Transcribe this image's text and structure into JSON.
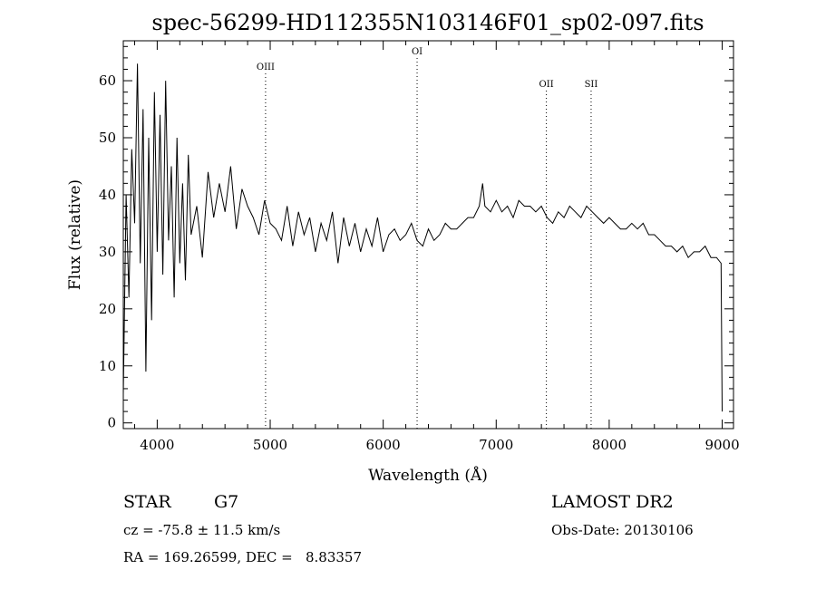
{
  "chart_data": {
    "type": "line",
    "title": "spec-56299-HD112355N103146F01_sp02-097.fits",
    "xlabel": "Wavelength (Å)",
    "ylabel": "Flux (relative)",
    "xlim": [
      3700,
      9100
    ],
    "ylim": [
      -1,
      67
    ],
    "xticks": [
      4000,
      5000,
      6000,
      7000,
      8000,
      9000
    ],
    "yticks": [
      0,
      10,
      20,
      30,
      40,
      50,
      60
    ],
    "grid": false,
    "series": [
      {
        "x": [
          3700,
          3725,
          3750,
          3775,
          3800,
          3825,
          3850,
          3875,
          3900,
          3925,
          3950,
          3975,
          4000,
          4025,
          4050,
          4075,
          4100,
          4125,
          4150,
          4175,
          4200,
          4225,
          4250,
          4275,
          4300,
          4350,
          4400,
          4450,
          4500,
          4550,
          4600,
          4650,
          4700,
          4750,
          4800,
          4850,
          4900,
          4950,
          5000,
          5050,
          5100,
          5150,
          5200,
          5250,
          5300,
          5350,
          5400,
          5450,
          5500,
          5550,
          5600,
          5650,
          5700,
          5750,
          5800,
          5850,
          5900,
          5950,
          6000,
          6050,
          6100,
          6150,
          6200,
          6250,
          6300,
          6350,
          6400,
          6450,
          6500,
          6550,
          6600,
          6650,
          6700,
          6750,
          6800,
          6850,
          6880,
          6900,
          6950,
          7000,
          7050,
          7100,
          7150,
          7200,
          7250,
          7300,
          7350,
          7400,
          7450,
          7500,
          7550,
          7600,
          7650,
          7700,
          7750,
          7800,
          7850,
          7900,
          7950,
          8000,
          8050,
          8100,
          8150,
          8200,
          8250,
          8300,
          8350,
          8400,
          8450,
          8500,
          8550,
          8600,
          8650,
          8700,
          8750,
          8800,
          8850,
          8900,
          8950,
          8990,
          9000
        ],
        "y": [
          5,
          40,
          22,
          48,
          35,
          63,
          28,
          55,
          9,
          50,
          18,
          58,
          30,
          54,
          26,
          60,
          32,
          45,
          22,
          50,
          28,
          42,
          25,
          47,
          33,
          38,
          29,
          44,
          36,
          42,
          37,
          45,
          34,
          41,
          38,
          36,
          33,
          39,
          35,
          34,
          32,
          38,
          31,
          37,
          33,
          36,
          30,
          35,
          32,
          37,
          28,
          36,
          31,
          35,
          30,
          34,
          31,
          36,
          30,
          33,
          34,
          32,
          33,
          35,
          32,
          31,
          34,
          32,
          33,
          35,
          34,
          34,
          35,
          36,
          36,
          38,
          42,
          38,
          37,
          39,
          37,
          38,
          36,
          39,
          38,
          38,
          37,
          38,
          36,
          35,
          37,
          36,
          38,
          37,
          36,
          38,
          37,
          36,
          35,
          36,
          35,
          34,
          34,
          35,
          34,
          35,
          33,
          33,
          32,
          31,
          31,
          30,
          31,
          29,
          30,
          30,
          31,
          29,
          29,
          28,
          2
        ]
      }
    ],
    "annotations": [
      {
        "label": "OIII",
        "x": 4959
      },
      {
        "label": "OI",
        "x": 6300
      },
      {
        "label": "OII",
        "x": 7444
      },
      {
        "label": "SII",
        "x": 7840
      }
    ]
  },
  "info": {
    "object_type": "STAR",
    "subclass": "G7",
    "survey": "LAMOST DR2",
    "cz": "cz = -75.8 ± 11.5 km/s",
    "obs_date": "Obs-Date: 20130106",
    "coords": "RA = 169.26599, DEC =   8.83357"
  }
}
